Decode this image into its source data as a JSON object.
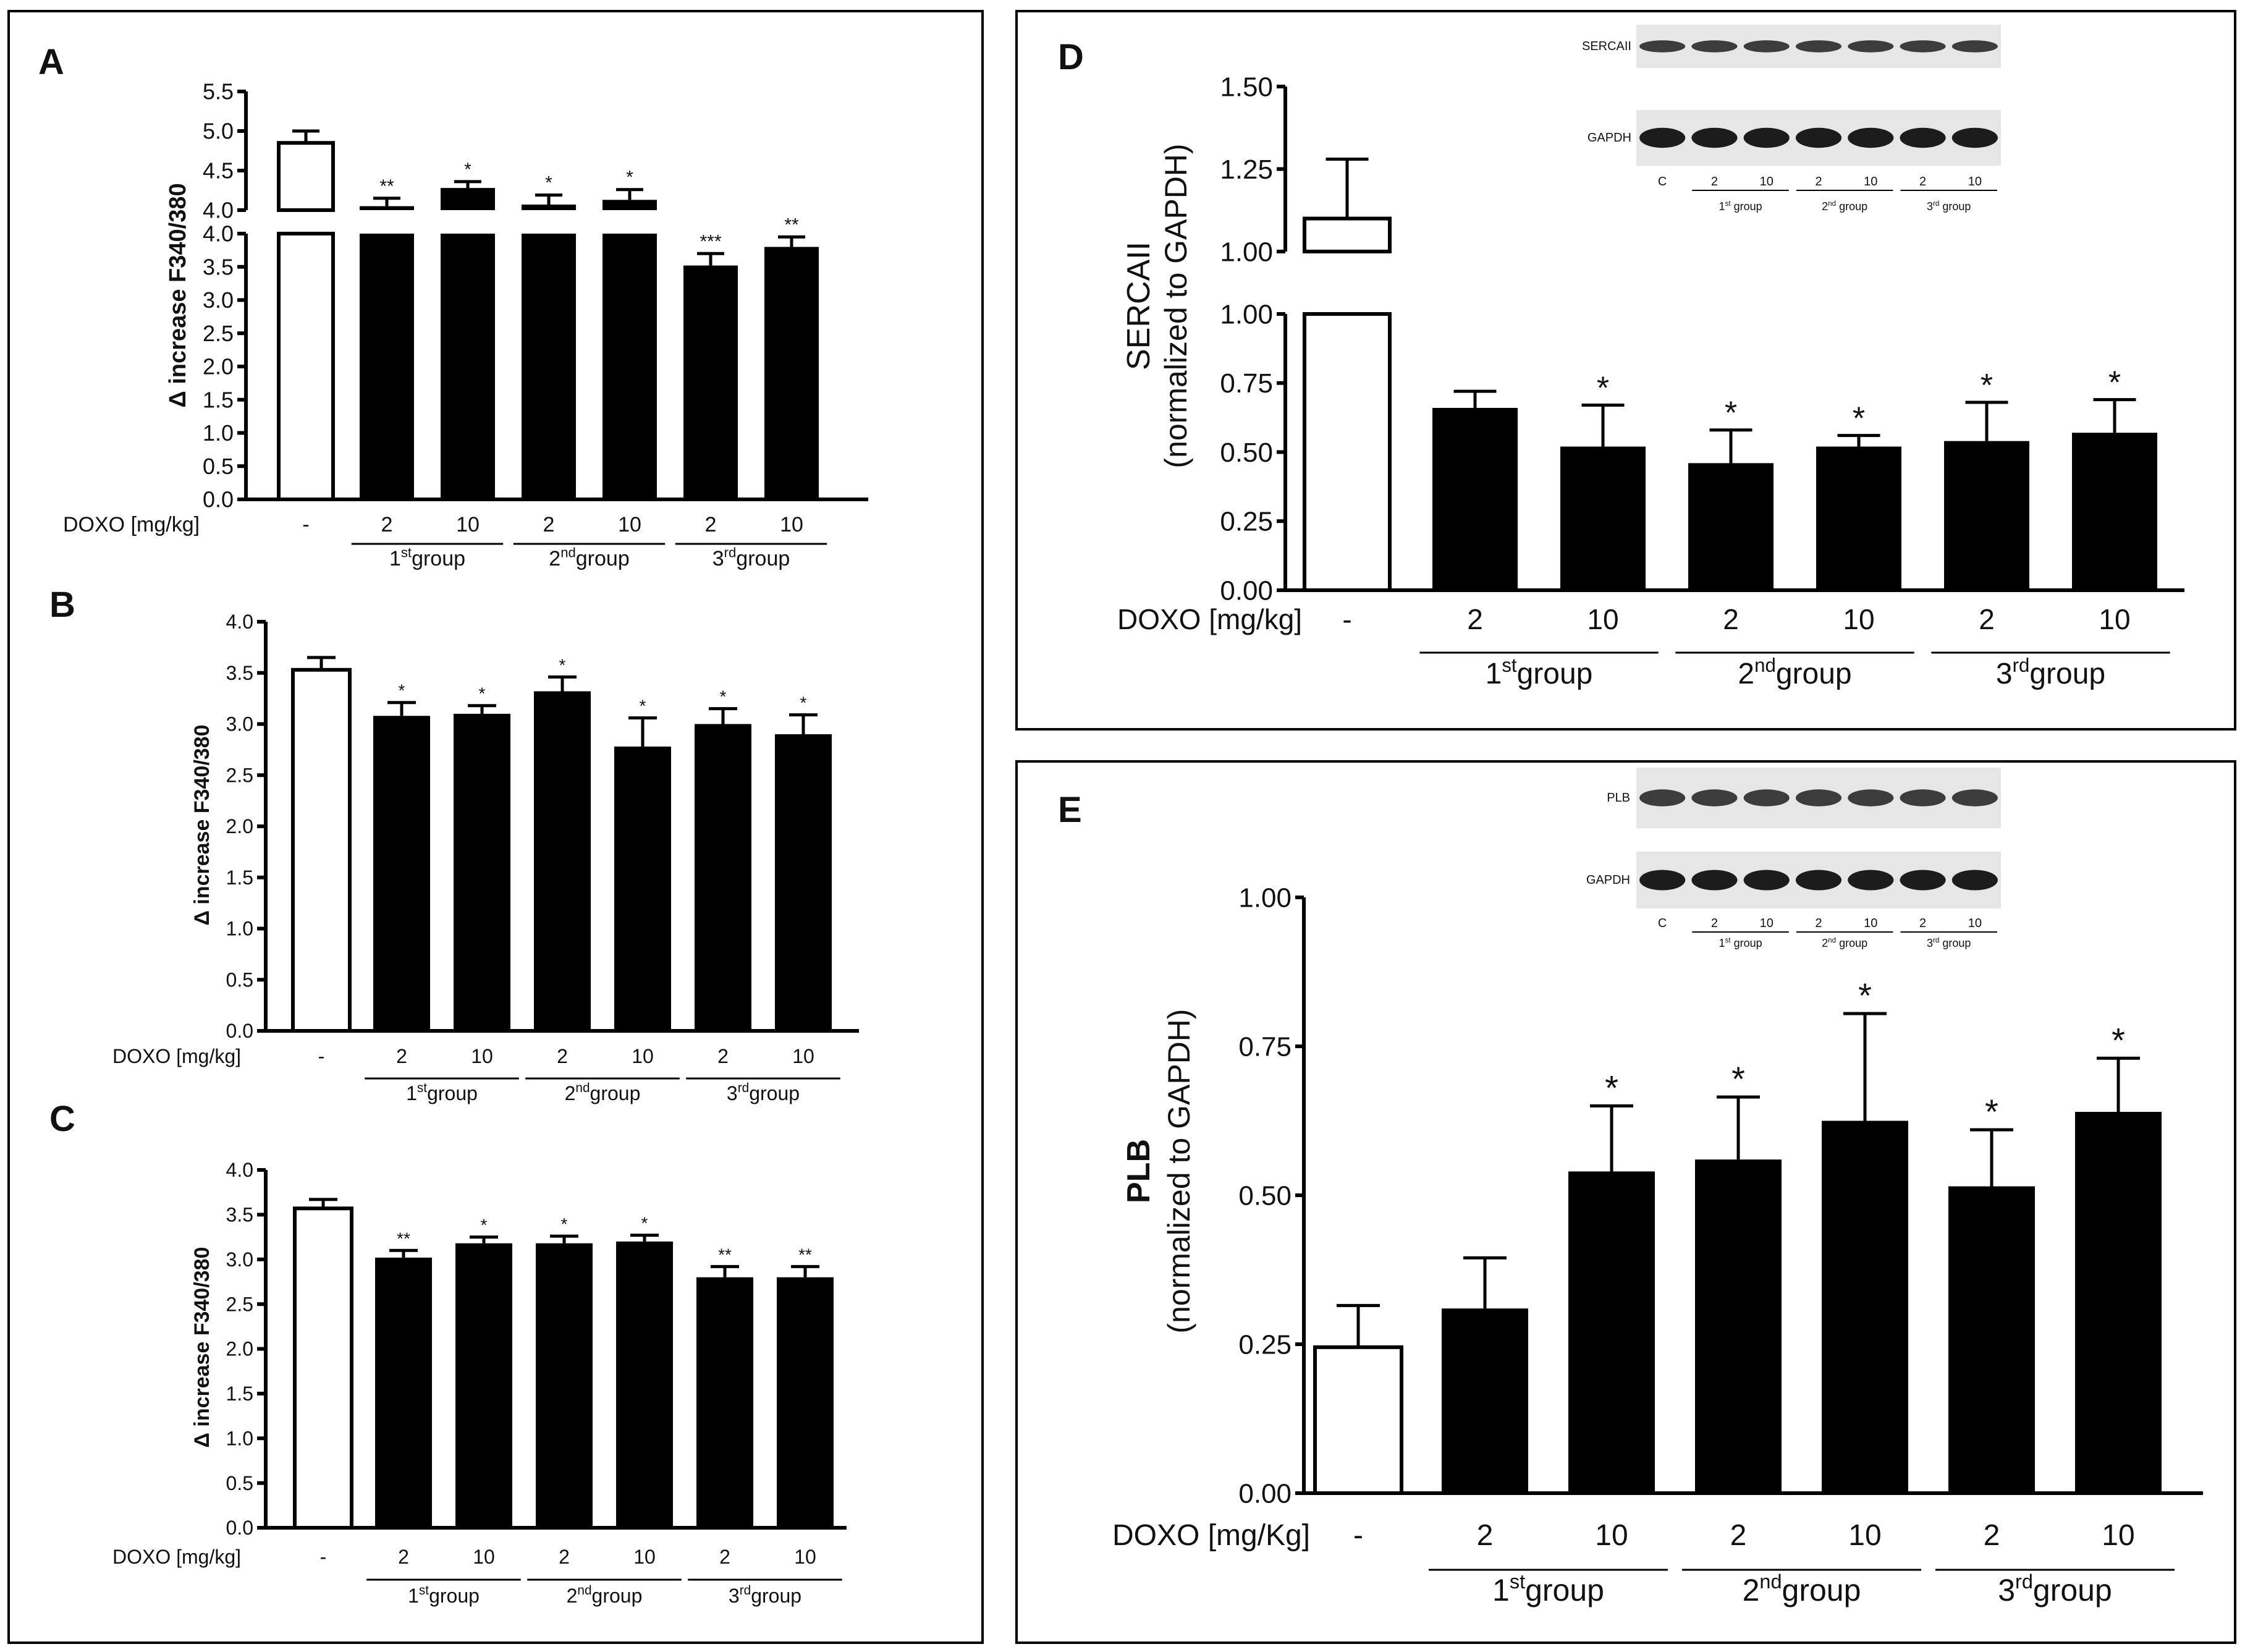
{
  "chart_data": [
    {
      "panel": "A",
      "type": "bar",
      "ylabel": "Δ increase F340/380",
      "axis_break": {
        "lower": [
          0.0,
          4.0
        ],
        "upper": [
          4.0,
          5.5
        ]
      },
      "yticks_lower": [
        "0.0",
        "0.5",
        "1.0",
        "1.5",
        "2.0",
        "2.5",
        "3.0",
        "3.5",
        "4.0"
      ],
      "yticks_upper": [
        "4.0",
        "4.5",
        "5.0",
        "5.5"
      ],
      "dose_label": "DOXO [mg/kg]",
      "categories": [
        "-",
        "2",
        "10",
        "2",
        "10",
        "2",
        "10"
      ],
      "groups": [
        {
          "label": "1",
          "sup": "st",
          "suffix": "group",
          "from": 1,
          "to": 2
        },
        {
          "label": "2",
          "sup": "nd",
          "suffix": "group",
          "from": 3,
          "to": 4
        },
        {
          "label": "3",
          "sup": "rd",
          "suffix": "group",
          "from": 5,
          "to": 6
        }
      ],
      "values": [
        4.85,
        4.05,
        4.28,
        4.07,
        4.13,
        3.52,
        3.8
      ],
      "errors": [
        0.15,
        0.1,
        0.08,
        0.12,
        0.13,
        0.18,
        0.15
      ],
      "significance": [
        "",
        "**",
        "*",
        "*",
        "*",
        "***",
        "**"
      ]
    },
    {
      "panel": "B",
      "type": "bar",
      "ylabel": "Δ increase F340/380",
      "ylim": [
        0,
        4.0
      ],
      "yticks": [
        "0.0",
        "0.5",
        "1.0",
        "1.5",
        "2.0",
        "2.5",
        "3.0",
        "3.5",
        "4.0"
      ],
      "dose_label": "DOXO [mg/kg]",
      "categories": [
        "-",
        "2",
        "10",
        "2",
        "10",
        "2",
        "10"
      ],
      "groups": [
        {
          "label": "1",
          "sup": "st",
          "suffix": "group",
          "from": 1,
          "to": 2
        },
        {
          "label": "2",
          "sup": "nd",
          "suffix": "group",
          "from": 3,
          "to": 4
        },
        {
          "label": "3",
          "sup": "rd",
          "suffix": "group",
          "from": 5,
          "to": 6
        }
      ],
      "values": [
        3.53,
        3.08,
        3.1,
        3.32,
        2.78,
        3.0,
        2.9
      ],
      "errors": [
        0.12,
        0.13,
        0.08,
        0.14,
        0.28,
        0.15,
        0.19
      ],
      "significance": [
        "",
        "*",
        "*",
        "*",
        "*",
        "*",
        "*"
      ]
    },
    {
      "panel": "C",
      "type": "bar",
      "ylabel": "Δ increase F340/380",
      "ylim": [
        0,
        4.0
      ],
      "yticks": [
        "0.0",
        "0.5",
        "1.0",
        "1.5",
        "2.0",
        "2.5",
        "3.0",
        "3.5",
        "4.0"
      ],
      "dose_label": "DOXO [mg/kg]",
      "categories": [
        "-",
        "2",
        "10",
        "2",
        "10",
        "2",
        "10"
      ],
      "groups": [
        {
          "label": "1",
          "sup": "st",
          "suffix": "group",
          "from": 1,
          "to": 2
        },
        {
          "label": "2",
          "sup": "nd",
          "suffix": "group",
          "from": 3,
          "to": 4
        },
        {
          "label": "3",
          "sup": "rd",
          "suffix": "group",
          "from": 5,
          "to": 6
        }
      ],
      "values": [
        3.57,
        3.02,
        3.18,
        3.18,
        3.2,
        2.8,
        2.8
      ],
      "errors": [
        0.1,
        0.08,
        0.07,
        0.08,
        0.07,
        0.12,
        0.12
      ],
      "significance": [
        "",
        "**",
        "*",
        "*",
        "*",
        "**",
        "**"
      ]
    },
    {
      "panel": "D",
      "type": "bar",
      "ylabel_line1": "SERCAII",
      "ylabel_line2": "(normalized to GAPDH)",
      "axis_break": {
        "lower": [
          0.0,
          1.0
        ],
        "upper": [
          1.0,
          1.5
        ]
      },
      "yticks_lower": [
        "0.00",
        "0.25",
        "0.50",
        "0.75",
        "1.00"
      ],
      "yticks_upper": [
        "1.00",
        "1.25",
        "1.50"
      ],
      "dose_label": "DOXO [mg/kg]",
      "categories": [
        "-",
        "2",
        "10",
        "2",
        "10",
        "2",
        "10"
      ],
      "groups": [
        {
          "label": "1",
          "sup": "st",
          "suffix": "group",
          "from": 1,
          "to": 2
        },
        {
          "label": "2",
          "sup": "nd",
          "suffix": "group",
          "from": 3,
          "to": 4
        },
        {
          "label": "3",
          "sup": "rd",
          "suffix": "group",
          "from": 5,
          "to": 6
        }
      ],
      "values": [
        1.1,
        0.66,
        0.52,
        0.46,
        0.52,
        0.54,
        0.57
      ],
      "errors": [
        0.18,
        0.06,
        0.15,
        0.12,
        0.04,
        0.14,
        0.12
      ],
      "significance": [
        "",
        "",
        "*",
        "*",
        "*",
        "*",
        "*"
      ],
      "blot": {
        "rows": [
          "SERCAII",
          "GAPDH"
        ],
        "lanes": [
          "C",
          "2",
          "10",
          "2",
          "10",
          "2",
          "10"
        ],
        "lane_groups": [
          {
            "label": "1",
            "sup": "st",
            "suffix": " group"
          },
          {
            "label": "2",
            "sup": "nd",
            "suffix": " group"
          },
          {
            "label": "3",
            "sup": "rd",
            "suffix": " group"
          }
        ]
      }
    },
    {
      "panel": "E",
      "type": "bar",
      "ylabel_line1": "PLB",
      "ylabel_line2": "(normalized to GAPDH)",
      "ylim": [
        0,
        1.0
      ],
      "yticks": [
        "0.00",
        "0.25",
        "0.50",
        "0.75",
        "1.00"
      ],
      "dose_label": "DOXO [mg/Kg]",
      "categories": [
        "-",
        "2",
        "10",
        "2",
        "10",
        "2",
        "10"
      ],
      "groups": [
        {
          "label": "1",
          "sup": "st",
          "suffix": "group",
          "from": 1,
          "to": 2
        },
        {
          "label": "2",
          "sup": "nd",
          "suffix": "group",
          "from": 3,
          "to": 4
        },
        {
          "label": "3",
          "sup": "rd",
          "suffix": "group",
          "from": 5,
          "to": 6
        }
      ],
      "values": [
        0.245,
        0.31,
        0.54,
        0.56,
        0.625,
        0.515,
        0.64
      ],
      "errors": [
        0.07,
        0.085,
        0.11,
        0.105,
        0.18,
        0.095,
        0.09
      ],
      "significance": [
        "",
        "",
        "*",
        "*",
        "*",
        "*",
        "*"
      ],
      "blot": {
        "rows": [
          "PLB",
          "GAPDH"
        ],
        "lanes": [
          "C",
          "2",
          "10",
          "2",
          "10",
          "2",
          "10"
        ],
        "lane_groups": [
          {
            "label": "1",
            "sup": "st",
            "suffix": " group"
          },
          {
            "label": "2",
            "sup": "nd",
            "suffix": " group"
          },
          {
            "label": "3",
            "sup": "rd",
            "suffix": " group"
          }
        ]
      }
    }
  ]
}
